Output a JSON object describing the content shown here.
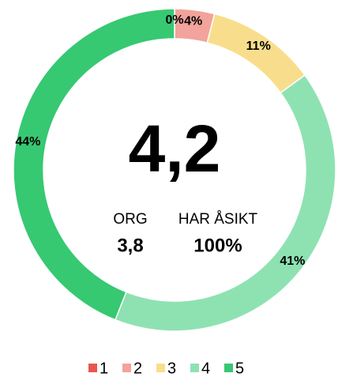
{
  "chart_data": {
    "type": "donut",
    "categories": [
      "1",
      "2",
      "3",
      "4",
      "5"
    ],
    "values": [
      0,
      4,
      11,
      41,
      44
    ],
    "value_labels": [
      "0%",
      "4%",
      "11%",
      "41%",
      "44%"
    ],
    "colors": [
      "#e8574e",
      "#f2a39b",
      "#f8de8c",
      "#8ee2b2",
      "#37c872"
    ],
    "legend": "bottom",
    "center": {
      "main": "4,2",
      "left_label": "ORG",
      "left_value": "3,8",
      "right_label": "HAR ÅSIKT",
      "right_value": "100%"
    }
  }
}
